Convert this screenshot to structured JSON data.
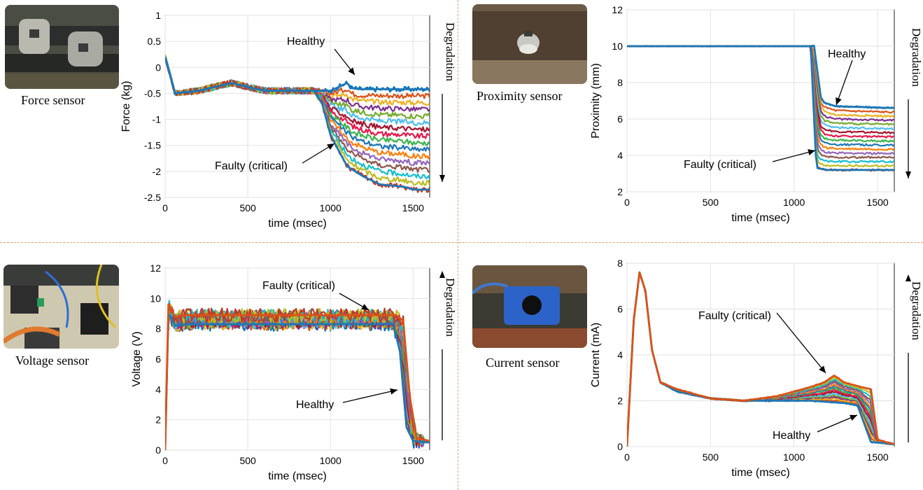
{
  "sensors": [
    {
      "caption": "Force sensor"
    },
    {
      "caption": "Proximity sensor"
    },
    {
      "caption": "Voltage sensor"
    },
    {
      "caption": "Current sensor"
    }
  ],
  "degradation_label": "Degradation",
  "chart_data": [
    {
      "type": "line",
      "xlabel": "time (msec)",
      "ylabel": "Force (kg)",
      "xlim": [
        0,
        1600
      ],
      "ylim": [
        -2.5,
        1
      ],
      "xticks": [
        "0",
        "500",
        "1000",
        "1500"
      ],
      "yticks": [
        "-2.5",
        "-2",
        "-1.5",
        "-1",
        "-0.5",
        "0",
        "0.5",
        "1"
      ],
      "grid": true,
      "annotations": [
        "Healthy",
        "Faulty (critical)"
      ],
      "degradation_direction": "down",
      "healthy": {
        "x": [
          0,
          60,
          200,
          400,
          600,
          800,
          1000,
          1100,
          1130,
          1180,
          1200,
          1600
        ],
        "y": [
          0.2,
          -0.5,
          -0.45,
          -0.3,
          -0.45,
          -0.45,
          -0.45,
          -0.3,
          -0.4,
          -0.42,
          -0.42,
          -0.42
        ]
      },
      "faulty": {
        "x": [
          0,
          60,
          200,
          400,
          600,
          800,
          900,
          950,
          1000,
          1050,
          1100,
          1200,
          1300,
          1450,
          1500,
          1600
        ],
        "y": [
          0.2,
          -0.5,
          -0.45,
          -0.3,
          -0.45,
          -0.45,
          -0.45,
          -0.7,
          -1.3,
          -1.6,
          -1.9,
          -2.1,
          -2.25,
          -2.3,
          -2.35,
          -2.35
        ]
      }
    },
    {
      "type": "line",
      "xlabel": "time (msec)",
      "ylabel": "Proximity (mm)",
      "xlim": [
        0,
        1600
      ],
      "ylim": [
        2,
        12
      ],
      "xticks": [
        "0",
        "500",
        "1000",
        "1500"
      ],
      "yticks": [
        "2",
        "4",
        "6",
        "8",
        "10",
        "12"
      ],
      "grid": true,
      "annotations": [
        "Healthy",
        "Faulty (critical)"
      ],
      "degradation_direction": "down",
      "healthy": {
        "x": [
          0,
          1120,
          1160,
          1180,
          1250,
          1600
        ],
        "y": [
          10,
          10,
          7.2,
          6.9,
          6.7,
          6.6
        ]
      },
      "faulty": {
        "x": [
          0,
          1100,
          1130,
          1140,
          1200,
          1600
        ],
        "y": [
          10,
          10,
          4,
          3.3,
          3.2,
          3.2
        ]
      }
    },
    {
      "type": "line",
      "xlabel": "time (msec)",
      "ylabel": "Voltage (V)",
      "xlim": [
        0,
        1600
      ],
      "ylim": [
        0,
        12
      ],
      "xticks": [
        "0",
        "500",
        "1000",
        "1500"
      ],
      "yticks": [
        "0",
        "2",
        "4",
        "6",
        "8",
        "10",
        "12"
      ],
      "grid": true,
      "annotations": [
        "Faulty (critical)",
        "Healthy"
      ],
      "degradation_direction": "up",
      "healthy": {
        "x": [
          0,
          20,
          60,
          140,
          1380,
          1420,
          1460,
          1500,
          1600
        ],
        "y": [
          0,
          9.0,
          8.2,
          8.3,
          8.3,
          6.5,
          1.5,
          0.6,
          0.5
        ]
      },
      "faulty": {
        "x": [
          0,
          20,
          60,
          140,
          1400,
          1440,
          1480,
          1520,
          1600
        ],
        "y": [
          0,
          9.6,
          8.8,
          8.9,
          8.9,
          8.5,
          3.5,
          0.8,
          0.6
        ]
      }
    },
    {
      "type": "line",
      "xlabel": "time (msec)",
      "ylabel": "Current (mA)",
      "xlim": [
        0,
        1600
      ],
      "ylim": [
        0,
        8
      ],
      "xticks": [
        "0",
        "500",
        "1000",
        "1500"
      ],
      "yticks": [
        "0",
        "2",
        "4",
        "6",
        "8"
      ],
      "grid": true,
      "annotations": [
        "Faulty (critical)",
        "Healthy"
      ],
      "degradation_direction": "up",
      "healthy": {
        "x": [
          0,
          40,
          75,
          110,
          150,
          200,
          300,
          500,
          700,
          900,
          1100,
          1300,
          1380,
          1420,
          1460,
          1600
        ],
        "y": [
          0,
          5.5,
          7.6,
          6.8,
          4.2,
          2.8,
          2.4,
          2.1,
          2.0,
          2.0,
          2.0,
          1.9,
          1.8,
          1.0,
          0.2,
          0.1
        ]
      },
      "faulty": {
        "x": [
          0,
          40,
          75,
          110,
          150,
          200,
          300,
          500,
          700,
          900,
          1100,
          1180,
          1240,
          1300,
          1400,
          1460,
          1500,
          1600
        ],
        "y": [
          0,
          5.5,
          7.6,
          6.8,
          4.2,
          2.8,
          2.5,
          2.1,
          2.0,
          2.2,
          2.6,
          2.8,
          3.1,
          2.8,
          2.6,
          2.5,
          0.3,
          0.1
        ]
      }
    }
  ]
}
